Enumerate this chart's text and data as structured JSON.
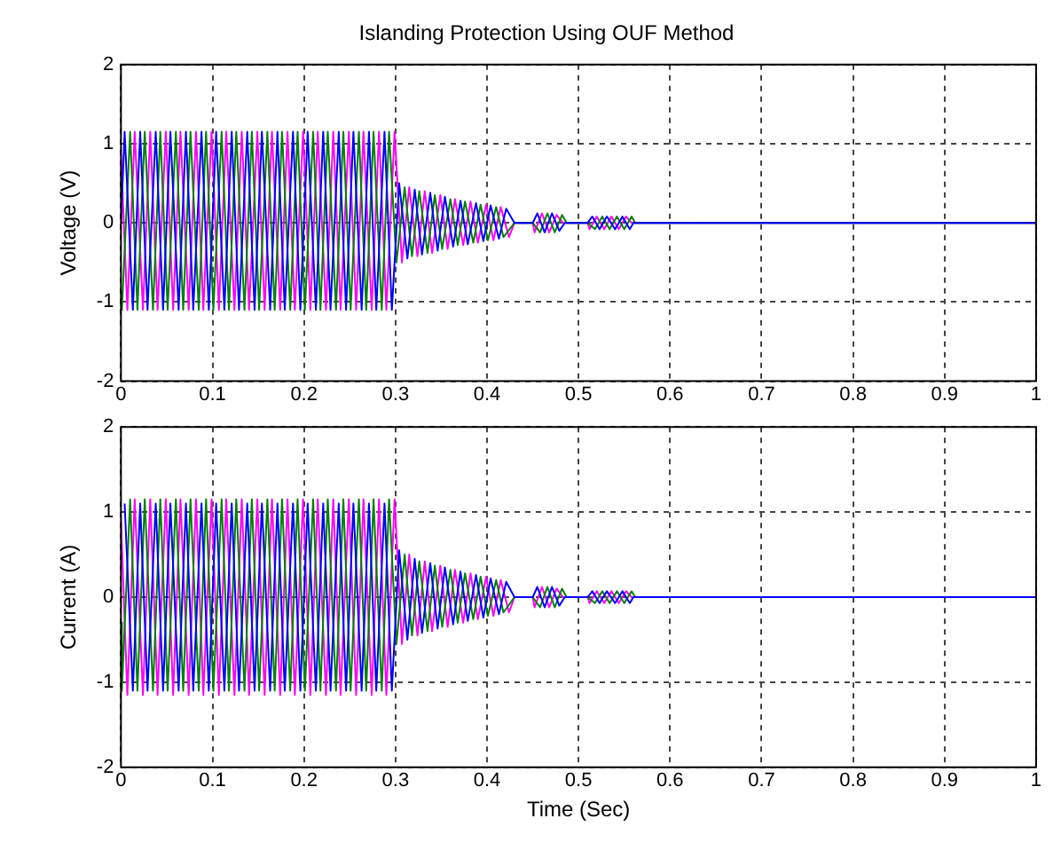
{
  "chart_data": [
    {
      "type": "line",
      "title": "Islanding Protection Using OUF Method",
      "ylabel": "Voltage (V)",
      "xlim": [
        0,
        1
      ],
      "xticks": [
        0,
        0.1,
        0.2,
        0.3,
        0.4,
        0.5,
        0.6,
        0.7,
        0.8,
        0.9,
        1
      ],
      "ylim": [
        -2,
        2
      ],
      "yticks": [
        -2,
        -1,
        0,
        1,
        2
      ],
      "grid": true,
      "series": [
        {
          "color": "#0000ff",
          "x": [
            0,
            0.004,
            0.013,
            0.021,
            0.029,
            0.038,
            0.046,
            0.054,
            0.063,
            0.071,
            0.079,
            0.088,
            0.096,
            0.104,
            0.113,
            0.121,
            0.129,
            0.138,
            0.146,
            0.154,
            0.163,
            0.171,
            0.179,
            0.188,
            0.196,
            0.204,
            0.213,
            0.221,
            0.229,
            0.238,
            0.246,
            0.254,
            0.263,
            0.271,
            0.279,
            0.288,
            0.296,
            0.304,
            0.313,
            0.321,
            0.329,
            0.338,
            0.346,
            0.354,
            0.363,
            0.371,
            0.379,
            0.388,
            0.396,
            0.404,
            0.413,
            0.421,
            0.43,
            0.45,
            0.455,
            0.463,
            0.471,
            0.479,
            0.485,
            0.51,
            0.515,
            0.523,
            0.531,
            0.54,
            0.548,
            0.556,
            0.56,
            1
          ],
          "values": [
            0,
            1.15,
            -1.1,
            1.15,
            -1.1,
            1.15,
            -1.1,
            1.15,
            -1.1,
            1.15,
            -1.1,
            1.15,
            -1.1,
            1.15,
            -1.1,
            1.15,
            -1.1,
            1.15,
            -1.1,
            1.15,
            -1.1,
            1.15,
            -1.1,
            1.15,
            -1.1,
            1.15,
            -1.1,
            1.15,
            -1.1,
            1.15,
            -1.1,
            1.15,
            -1.1,
            1.15,
            -1.1,
            1.15,
            -1.1,
            0.5,
            -0.45,
            0.42,
            -0.4,
            0.38,
            -0.35,
            0.33,
            -0.3,
            0.28,
            -0.27,
            0.25,
            -0.23,
            0.22,
            -0.2,
            0.18,
            0,
            0,
            0.12,
            -0.12,
            0.12,
            -0.1,
            0,
            0,
            0.08,
            -0.08,
            0.08,
            -0.08,
            0.08,
            -0.08,
            0,
            0
          ]
        },
        {
          "color": "#008000",
          "x": [
            0,
            0.001,
            0.01,
            0.018,
            0.026,
            0.035,
            0.043,
            0.051,
            0.06,
            0.068,
            0.076,
            0.085,
            0.093,
            0.101,
            0.11,
            0.118,
            0.126,
            0.135,
            0.143,
            0.151,
            0.16,
            0.168,
            0.176,
            0.185,
            0.193,
            0.201,
            0.21,
            0.218,
            0.226,
            0.235,
            0.243,
            0.251,
            0.26,
            0.268,
            0.276,
            0.285,
            0.293,
            0.301,
            0.31,
            0.318,
            0.326,
            0.335,
            0.343,
            0.351,
            0.36,
            0.368,
            0.376,
            0.385,
            0.393,
            0.401,
            0.41,
            0.418,
            0.43,
            0.45,
            0.458,
            0.466,
            0.474,
            0.482,
            0.487,
            0.51,
            0.518,
            0.526,
            0.534,
            0.542,
            0.55,
            0.558,
            0.562,
            1
          ],
          "values": [
            -0.87,
            -1.1,
            1.15,
            -1.1,
            1.15,
            -1.1,
            1.15,
            -1.1,
            1.15,
            -1.1,
            1.15,
            -1.1,
            1.15,
            -1.1,
            1.15,
            -1.1,
            1.15,
            -1.1,
            1.15,
            -1.1,
            1.15,
            -1.1,
            1.15,
            -1.1,
            1.15,
            -1.1,
            1.15,
            -1.1,
            1.15,
            -1.1,
            1.15,
            -1.1,
            1.15,
            -1.1,
            1.15,
            -1.1,
            1.15,
            -0.5,
            0.45,
            -0.42,
            0.4,
            -0.38,
            0.35,
            -0.33,
            0.3,
            -0.28,
            0.27,
            -0.25,
            0.23,
            -0.22,
            0.2,
            -0.18,
            0,
            0,
            -0.12,
            0.12,
            -0.12,
            0.1,
            0,
            0,
            -0.08,
            0.08,
            -0.08,
            0.08,
            -0.08,
            0.08,
            0,
            0
          ]
        },
        {
          "color": "#ff00ff",
          "x": [
            0,
            0.007,
            0.015,
            0.024,
            0.032,
            0.04,
            0.049,
            0.057,
            0.065,
            0.074,
            0.082,
            0.09,
            0.099,
            0.107,
            0.115,
            0.124,
            0.132,
            0.14,
            0.149,
            0.157,
            0.165,
            0.174,
            0.182,
            0.19,
            0.199,
            0.207,
            0.215,
            0.224,
            0.232,
            0.24,
            0.249,
            0.257,
            0.265,
            0.274,
            0.282,
            0.29,
            0.299,
            0.307,
            0.315,
            0.324,
            0.332,
            0.34,
            0.349,
            0.357,
            0.365,
            0.374,
            0.382,
            0.39,
            0.399,
            0.407,
            0.415,
            0.424,
            0.43,
            0.45,
            0.452,
            0.46,
            0.468,
            0.476,
            0.483,
            0.51,
            0.512,
            0.52,
            0.528,
            0.536,
            0.544,
            0.552,
            0.558,
            1
          ],
          "values": [
            0.87,
            -1.1,
            1.15,
            -1.1,
            1.15,
            -1.1,
            1.15,
            -1.1,
            1.15,
            -1.1,
            1.15,
            -1.1,
            1.15,
            -1.1,
            1.15,
            -1.1,
            1.15,
            -1.1,
            1.15,
            -1.1,
            1.15,
            -1.1,
            1.15,
            -1.1,
            1.15,
            -1.1,
            1.15,
            -1.1,
            1.15,
            -1.1,
            1.15,
            -1.1,
            1.15,
            -1.1,
            1.15,
            -1.1,
            1.15,
            -0.5,
            0.45,
            -0.42,
            0.4,
            -0.38,
            0.35,
            -0.33,
            0.3,
            -0.28,
            0.27,
            -0.25,
            0.23,
            -0.22,
            0.2,
            -0.18,
            0,
            0,
            -0.12,
            0.12,
            -0.12,
            0.1,
            0,
            0,
            -0.08,
            0.08,
            -0.08,
            0.08,
            -0.08,
            0.08,
            0,
            0
          ]
        }
      ]
    },
    {
      "type": "line",
      "xlabel": "Time (Sec)",
      "ylabel": "Current (A)",
      "xlim": [
        0,
        1
      ],
      "xticks": [
        0,
        0.1,
        0.2,
        0.3,
        0.4,
        0.5,
        0.6,
        0.7,
        0.8,
        0.9,
        1
      ],
      "ylim": [
        -2,
        2
      ],
      "yticks": [
        -2,
        -1,
        0,
        1,
        2
      ],
      "grid": true,
      "series": [
        {
          "color": "#0000ff",
          "x": [
            0.004,
            0.013,
            0.021,
            0.029,
            0.038,
            0.046,
            0.054,
            0.063,
            0.071,
            0.079,
            0.088,
            0.096,
            0.104,
            0.113,
            0.121,
            0.129,
            0.138,
            0.146,
            0.154,
            0.163,
            0.171,
            0.179,
            0.188,
            0.196,
            0.204,
            0.213,
            0.221,
            0.229,
            0.238,
            0.246,
            0.254,
            0.263,
            0.271,
            0.279,
            0.288,
            0.296,
            0.304,
            0.313,
            0.321,
            0.329,
            0.338,
            0.346,
            0.354,
            0.363,
            0.371,
            0.379,
            0.388,
            0.396,
            0.404,
            0.413,
            0.421,
            0.43,
            0.45,
            0.455,
            0.463,
            0.471,
            0.479,
            0.485,
            0.51,
            0.515,
            0.523,
            0.531,
            0.54,
            0.548,
            0.556,
            0.56,
            1
          ],
          "values": [
            1.1,
            -1.1,
            1.1,
            -1.1,
            1.1,
            -1.1,
            1.1,
            -1.1,
            1.1,
            -1.1,
            1.1,
            -1.1,
            1.1,
            -1.1,
            1.1,
            -1.1,
            1.1,
            -1.1,
            1.1,
            -1.1,
            1.1,
            -1.1,
            1.1,
            -1.1,
            1.1,
            -1.1,
            1.1,
            -1.1,
            1.1,
            -1.1,
            1.1,
            -1.1,
            1.1,
            -1.1,
            1.1,
            -1.1,
            0.55,
            -0.5,
            0.45,
            -0.42,
            0.4,
            -0.37,
            0.35,
            -0.32,
            0.3,
            -0.28,
            0.26,
            -0.24,
            0.22,
            -0.2,
            0.18,
            0,
            0,
            0.12,
            -0.12,
            0.12,
            -0.1,
            0,
            0,
            0.07,
            -0.07,
            0.07,
            -0.07,
            0.07,
            -0.07,
            0,
            0
          ]
        },
        {
          "color": "#008000",
          "x": [
            0,
            0.001,
            0.01,
            0.018,
            0.026,
            0.035,
            0.043,
            0.051,
            0.06,
            0.068,
            0.076,
            0.085,
            0.093,
            0.101,
            0.11,
            0.118,
            0.126,
            0.135,
            0.143,
            0.151,
            0.16,
            0.168,
            0.176,
            0.185,
            0.193,
            0.201,
            0.21,
            0.218,
            0.226,
            0.235,
            0.243,
            0.251,
            0.26,
            0.268,
            0.276,
            0.285,
            0.293,
            0.301,
            0.31,
            0.318,
            0.326,
            0.335,
            0.343,
            0.351,
            0.36,
            0.368,
            0.376,
            0.385,
            0.393,
            0.401,
            0.41,
            0.418,
            0.43,
            0.45,
            0.458,
            0.466,
            0.474,
            0.482,
            0.487,
            0.51,
            0.518,
            0.526,
            0.534,
            0.542,
            0.55,
            0.558,
            0.562,
            1
          ],
          "values": [
            -0.3,
            -1.1,
            1.15,
            -1.1,
            1.15,
            -1.1,
            1.15,
            -1.1,
            1.15,
            -1.1,
            1.15,
            -1.1,
            1.15,
            -1.1,
            1.15,
            -1.1,
            1.15,
            -1.1,
            1.15,
            -1.1,
            1.15,
            -1.1,
            1.15,
            -1.1,
            1.15,
            -1.1,
            1.15,
            -1.1,
            1.15,
            -1.1,
            1.15,
            -1.1,
            1.15,
            -1.1,
            1.15,
            -1.1,
            1.15,
            -0.55,
            0.5,
            -0.45,
            0.42,
            -0.4,
            0.37,
            -0.35,
            0.32,
            -0.3,
            0.28,
            -0.26,
            0.24,
            -0.22,
            0.2,
            -0.18,
            0,
            0,
            -0.12,
            0.12,
            -0.12,
            0.1,
            0,
            0,
            -0.07,
            0.07,
            -0.07,
            0.07,
            -0.07,
            0.07,
            0,
            0
          ]
        },
        {
          "color": "#ff00ff",
          "x": [
            0,
            0.007,
            0.015,
            0.024,
            0.032,
            0.04,
            0.049,
            0.057,
            0.065,
            0.074,
            0.082,
            0.09,
            0.099,
            0.107,
            0.115,
            0.124,
            0.132,
            0.14,
            0.149,
            0.157,
            0.165,
            0.174,
            0.182,
            0.19,
            0.199,
            0.207,
            0.215,
            0.224,
            0.232,
            0.24,
            0.249,
            0.257,
            0.265,
            0.274,
            0.282,
            0.29,
            0.299,
            0.307,
            0.315,
            0.324,
            0.332,
            0.34,
            0.349,
            0.357,
            0.365,
            0.374,
            0.382,
            0.39,
            0.399,
            0.407,
            0.415,
            0.424,
            0.43,
            0.45,
            0.452,
            0.46,
            0.468,
            0.476,
            0.483,
            0.51,
            0.512,
            0.52,
            0.528,
            0.536,
            0.544,
            0.552,
            0.558,
            1
          ],
          "values": [
            0.9,
            -1.15,
            1.15,
            -1.15,
            1.15,
            -1.15,
            1.15,
            -1.15,
            1.15,
            -1.15,
            1.15,
            -1.15,
            1.15,
            -1.15,
            1.15,
            -1.15,
            1.15,
            -1.15,
            1.15,
            -1.15,
            1.15,
            -1.15,
            1.15,
            -1.15,
            1.15,
            -1.15,
            1.15,
            -1.15,
            1.15,
            -1.15,
            1.15,
            -1.15,
            1.15,
            -1.15,
            1.15,
            -1.15,
            1.15,
            -0.55,
            0.5,
            -0.45,
            0.42,
            -0.4,
            0.37,
            -0.35,
            0.32,
            -0.3,
            0.28,
            -0.26,
            0.24,
            -0.22,
            0.2,
            -0.18,
            0,
            0,
            -0.12,
            0.12,
            -0.12,
            0.1,
            0,
            0,
            -0.07,
            0.07,
            -0.07,
            0.07,
            -0.07,
            0.07,
            0,
            0
          ]
        }
      ]
    }
  ]
}
